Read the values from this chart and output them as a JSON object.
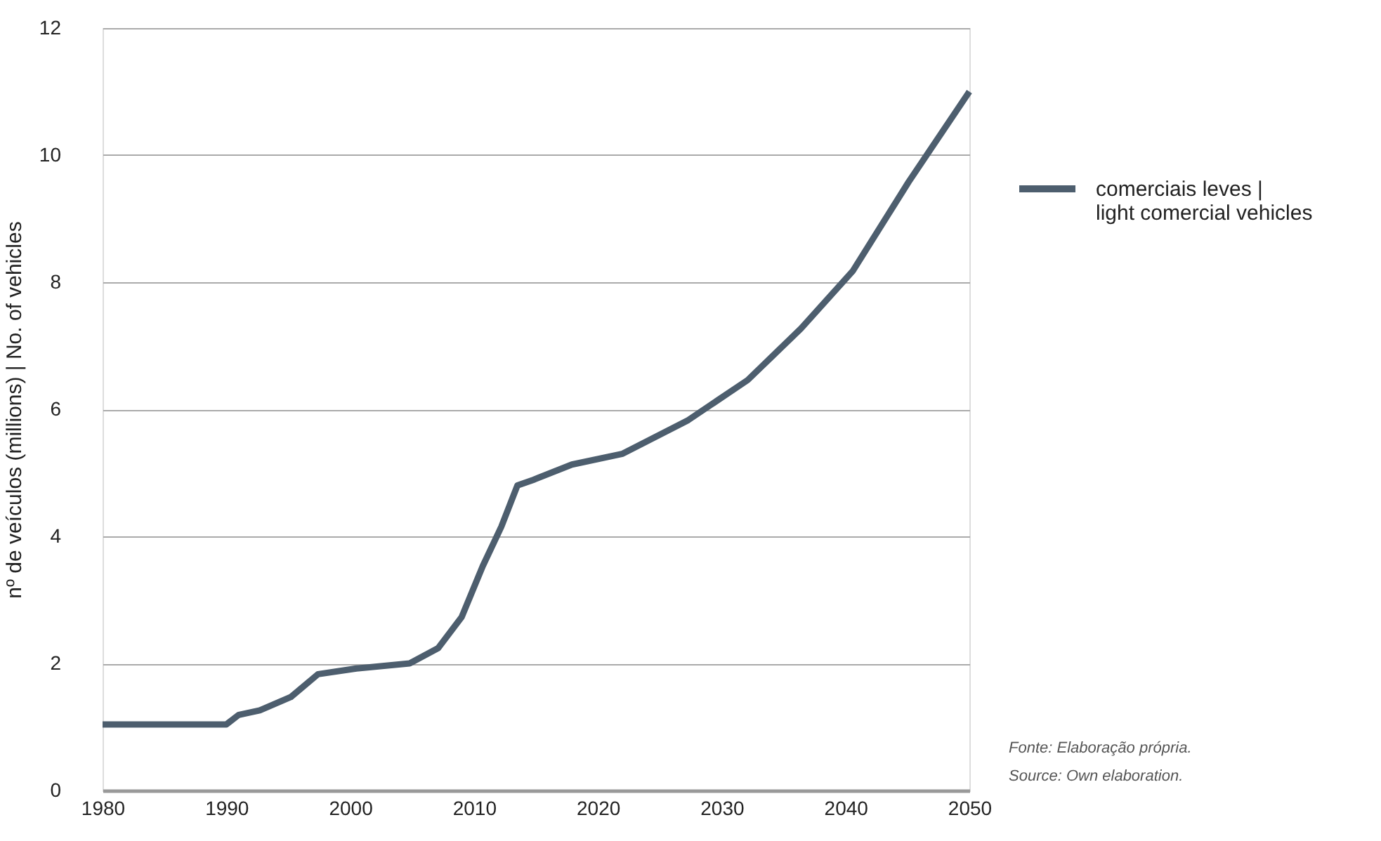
{
  "chart_data": {
    "type": "line",
    "ylabel": "nº de veículos (millions) | No. of vehicles",
    "x": [
      1980,
      1990,
      1991,
      1992.7,
      1995.2,
      1997.4,
      2000.5,
      2004.8,
      2007.1,
      2009,
      2010.7,
      2012.2,
      2013.5,
      2014.8,
      2017.9,
      2022,
      2027.3,
      2032.1,
      2036.4,
      2040.6,
      2045.1,
      2050
    ],
    "series": [
      {
        "name": "comerciais leves |\nlight comercial vehicles",
        "color": "#4d5e6e",
        "values": [
          1.04,
          1.04,
          1.19,
          1.26,
          1.47,
          1.83,
          1.92,
          2.0,
          2.24,
          2.73,
          3.53,
          4.15,
          4.8,
          4.89,
          5.13,
          5.3,
          5.83,
          6.46,
          7.27,
          8.18,
          9.58,
          11.0
        ]
      }
    ],
    "xlim": [
      1980,
      2050
    ],
    "xticks": [
      1980,
      1990,
      2000,
      2010,
      2020,
      2030,
      2040,
      2050
    ],
    "ylim": [
      0,
      12
    ],
    "yticks": [
      0,
      2,
      4,
      6,
      8,
      10,
      12
    ],
    "grid": "y",
    "legend": "right",
    "marker": "none",
    "line_style": "solid",
    "annotations": [
      "Fonte: Elaboração própria.",
      "Source: Own elaboration."
    ]
  }
}
